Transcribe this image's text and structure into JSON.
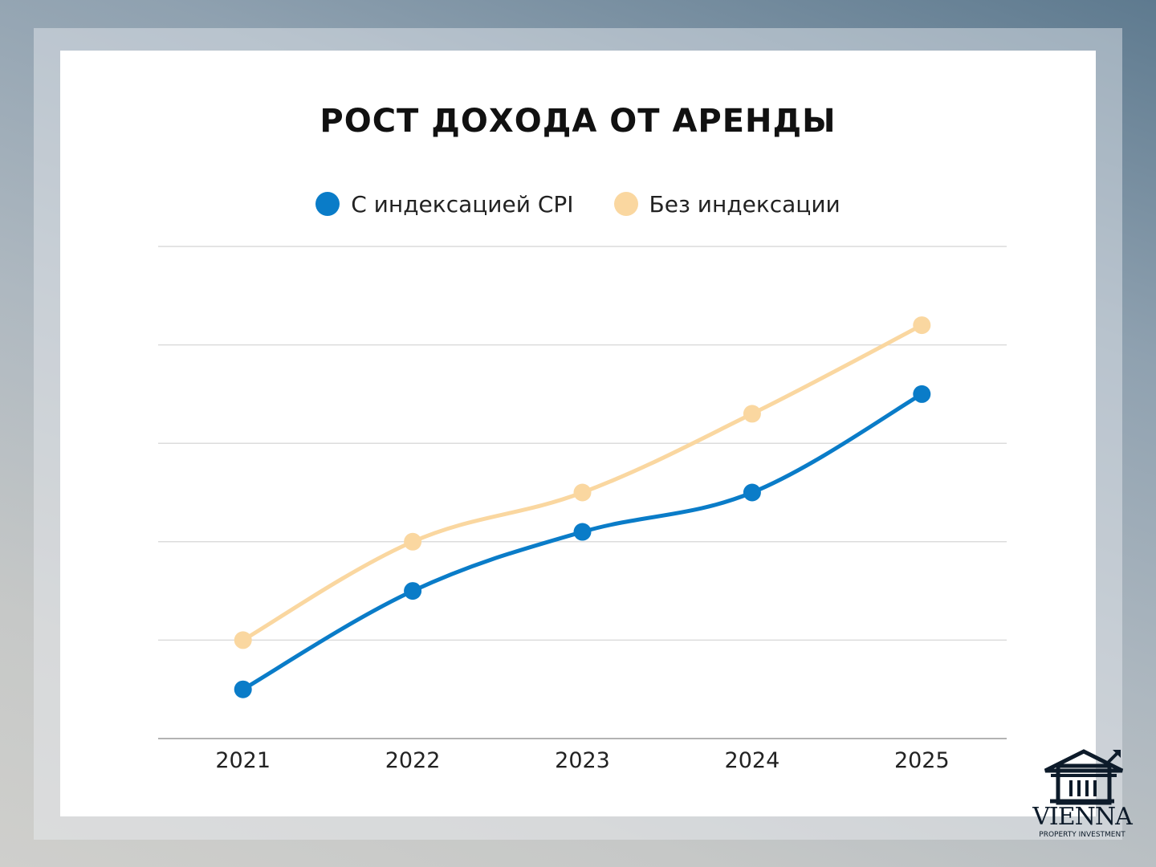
{
  "chart_data": {
    "type": "line",
    "title": "РОСТ ДОХОДА ОТ АРЕНДЫ",
    "categories": [
      "2021",
      "2022",
      "2023",
      "2024",
      "2025"
    ],
    "series": [
      {
        "name": "С индексацией CPI",
        "color": "#0a7cc8",
        "values": [
          0.5,
          1.5,
          2.1,
          2.5,
          3.5
        ]
      },
      {
        "name": "Без индексации",
        "color": "#fad7a0",
        "values": [
          1.0,
          2.0,
          2.5,
          3.3,
          4.2
        ]
      }
    ],
    "ylim": [
      0,
      5
    ],
    "grid": true,
    "legend": "top-center",
    "xlabel": "",
    "ylabel": ""
  },
  "brand": {
    "name": "VIENNA",
    "tagline": "PROPERTY INVESTMENT"
  }
}
